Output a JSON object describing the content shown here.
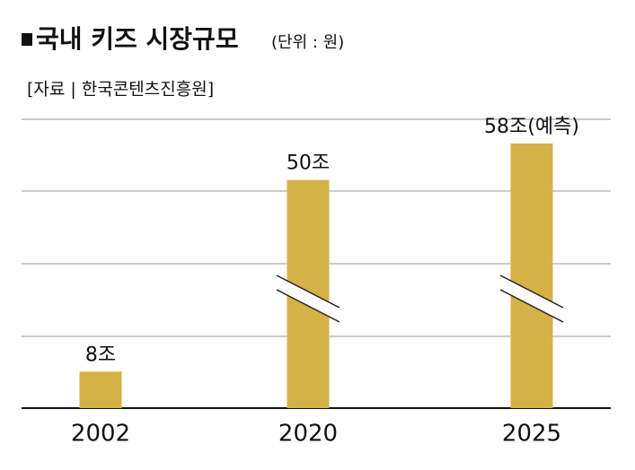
{
  "chart_data": {
    "type": "bar",
    "title": "국내 키즈 시장규모",
    "subtitle": "(단위 : 원)",
    "source": "[자료 | 한국콘텐츠진흥원]",
    "categories": [
      "2002",
      "2020",
      "2025"
    ],
    "values": [
      8,
      50,
      58
    ],
    "value_labels": [
      "8조",
      "50조",
      "58조(예측)"
    ],
    "color": "#d4b245",
    "axis_break": [
      false,
      true,
      true
    ]
  }
}
